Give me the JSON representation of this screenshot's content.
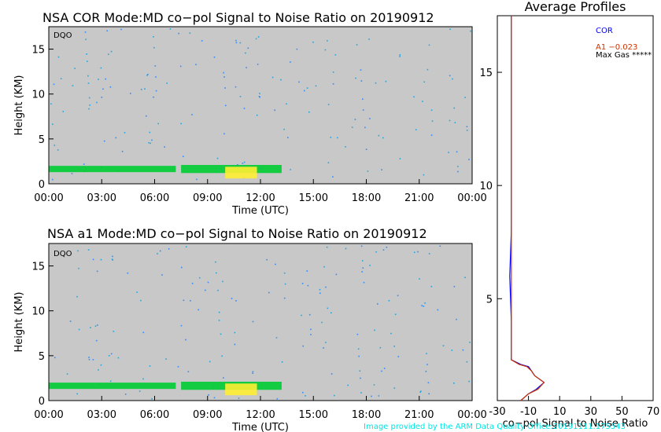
{
  "chart_data": [
    {
      "type": "heatmap",
      "title": "NSA COR  Mode:MD  co−pol Signal to Noise Ratio  on 20190912",
      "tag": "DQO",
      "xlabel": "Time (UTC)",
      "ylabel": "Height (KM)",
      "xticks": [
        "00:00",
        "03:00",
        "06:00",
        "09:00",
        "12:00",
        "15:00",
        "18:00",
        "21:00",
        "00:00"
      ],
      "xlim": [
        0,
        24
      ],
      "yticks": [
        0,
        5,
        10,
        15
      ],
      "ylim": [
        0,
        17.5
      ],
      "background_color": "#c8c8c8",
      "cloud_segments": [
        {
          "t_start": 0.0,
          "t_end": 7.2,
          "h_bottom": 1.3,
          "h_top": 2.0,
          "color": "#00cc33"
        },
        {
          "t_start": 7.5,
          "t_end": 13.2,
          "h_bottom": 1.2,
          "h_top": 2.1,
          "color": "#00cc33"
        },
        {
          "t_start": 10.0,
          "t_end": 11.8,
          "h_bottom": 0.6,
          "h_top": 1.9,
          "color": "#ffee33"
        }
      ]
    },
    {
      "type": "heatmap",
      "title": "NSA a1   Mode:MD   co−pol Signal to Noise Ratio   on 20190912",
      "tag": "DQO",
      "xlabel": "Time (UTC)",
      "ylabel": "Height (KM)",
      "xticks": [
        "00:00",
        "03:00",
        "06:00",
        "09:00",
        "12:00",
        "15:00",
        "18:00",
        "21:00",
        "00:00"
      ],
      "xlim": [
        0,
        24
      ],
      "yticks": [
        0,
        5,
        10,
        15
      ],
      "ylim": [
        0,
        17.5
      ],
      "background_color": "#c8c8c8",
      "cloud_segments": [
        {
          "t_start": 0.0,
          "t_end": 7.2,
          "h_bottom": 1.3,
          "h_top": 2.0,
          "color": "#00cc33"
        },
        {
          "t_start": 7.5,
          "t_end": 13.2,
          "h_bottom": 1.2,
          "h_top": 2.1,
          "color": "#00cc33"
        },
        {
          "t_start": 10.0,
          "t_end": 11.8,
          "h_bottom": 0.6,
          "h_top": 1.9,
          "color": "#ffee33"
        }
      ]
    },
    {
      "type": "line",
      "title": "Average Profiles",
      "xlabel": "co−pol Signal to Noise Ratio",
      "xticks": [
        -30,
        -10,
        10,
        30,
        50,
        70
      ],
      "xlim": [
        -30,
        70
      ],
      "yticks": [
        5,
        10,
        15
      ],
      "ylim": [
        0.5,
        17.5
      ],
      "legend": [
        {
          "label": "COR",
          "color": "#0000ff"
        },
        {
          "label": "A1  −0.023",
          "color": "#cc3300"
        },
        {
          "label": "Max Gas *****",
          "color": "#000000"
        }
      ],
      "series": [
        {
          "name": "COR",
          "color": "#0000ff",
          "x": [
            -15,
            -10,
            -5,
            0,
            -6,
            -8,
            -10,
            -15,
            -21,
            -21,
            -21,
            -22,
            -21,
            -21,
            -21,
            -21,
            -21
          ],
          "y": [
            0.5,
            0.8,
            1.0,
            1.3,
            1.6,
            1.8,
            2.0,
            2.1,
            2.3,
            2.6,
            4.0,
            6.0,
            8.0,
            10.0,
            12.0,
            14.0,
            17.5
          ]
        },
        {
          "name": "A1",
          "color": "#cc3300",
          "x": [
            -15,
            -10,
            -4,
            0,
            -6,
            -8,
            -11,
            -16,
            -21,
            -21,
            -21,
            -21,
            -21,
            -21,
            -21,
            -21,
            -21
          ],
          "y": [
            0.5,
            0.8,
            1.0,
            1.3,
            1.6,
            1.8,
            2.0,
            2.1,
            2.3,
            2.6,
            4.0,
            6.0,
            8.0,
            10.0,
            12.0,
            14.0,
            17.5
          ]
        }
      ]
    }
  ],
  "credit": "Image provided by the ARM Data Quality Office:20191111.175543"
}
